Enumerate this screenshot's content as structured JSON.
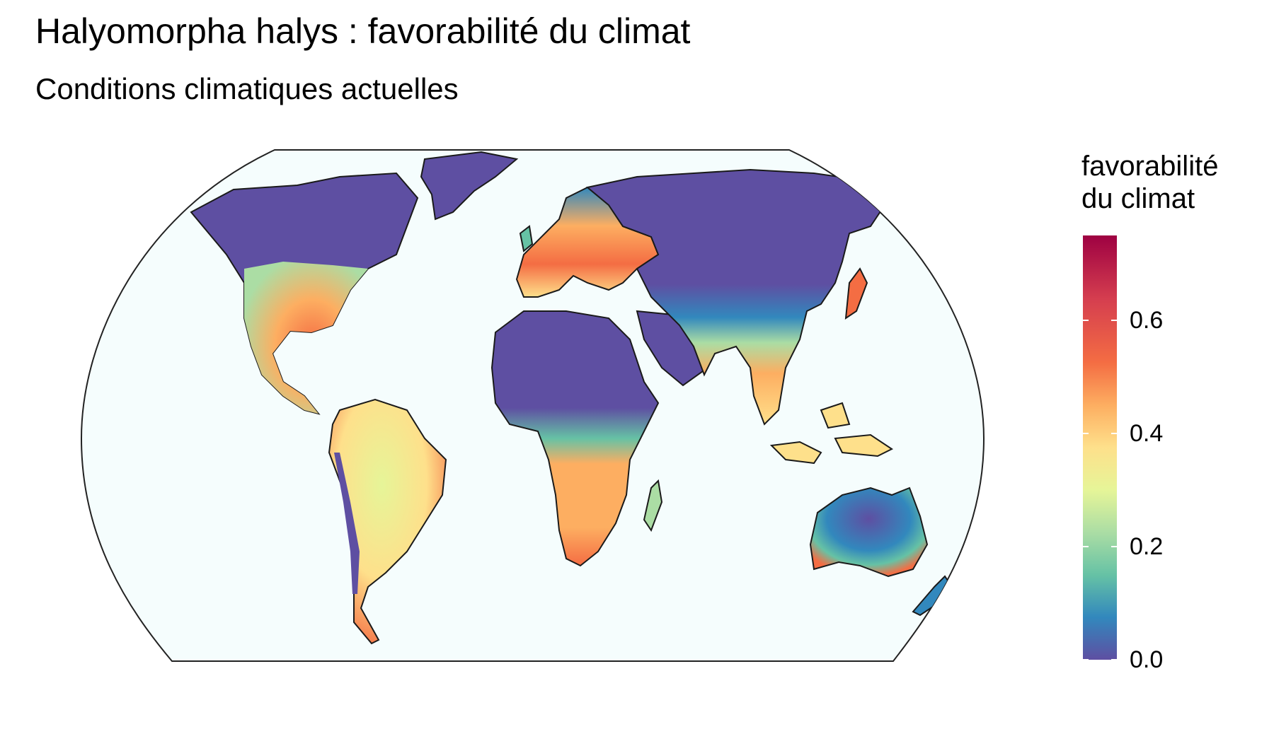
{
  "title": "Halyomorpha halys : favorabilité du climat",
  "subtitle": "Conditions climatiques actuelles",
  "legend": {
    "title_line1": "favorabilité",
    "title_line2": "du climat",
    "ticks": [
      {
        "label": "0.0",
        "value": 0.0
      },
      {
        "label": "0.2",
        "value": 0.2
      },
      {
        "label": "0.4",
        "value": 0.4
      },
      {
        "label": "0.6",
        "value": 0.6
      }
    ],
    "range": [
      0.0,
      0.75
    ],
    "palette": [
      "#5e4fa2",
      "#3288bd",
      "#66c2a5",
      "#abdda4",
      "#e6f598",
      "#fee08b",
      "#fdae61",
      "#f46d43",
      "#d53e4f",
      "#9e0142"
    ]
  },
  "colors": {
    "ocean": "#f5fdfd",
    "land_low": "#5e4fa2",
    "land_mid": "#fee08b",
    "land_high": "#d53e4f"
  }
}
